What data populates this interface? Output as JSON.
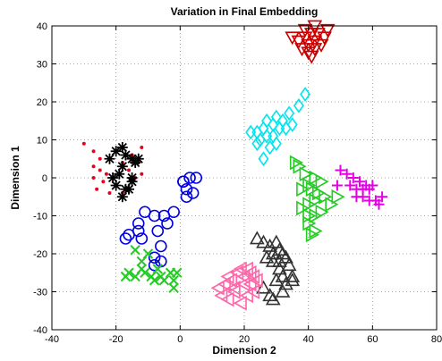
{
  "chart_data": {
    "type": "scatter",
    "title": "Variation in Final Embedding",
    "xlabel": "Dimension 2",
    "ylabel": "Dimension 1",
    "xlim": [
      -40,
      80
    ],
    "ylim": [
      -40,
      40
    ],
    "xticks": [
      -40,
      -20,
      0,
      20,
      40,
      60,
      80
    ],
    "yticks": [
      -40,
      -30,
      -20,
      -10,
      0,
      10,
      20,
      30,
      40
    ],
    "grid": "dotted",
    "series": [
      {
        "marker": "dot",
        "color": "#e8001c",
        "points": [
          [
            -30,
            9
          ],
          [
            -27,
            7
          ],
          [
            -25,
            5
          ],
          [
            -27,
            3
          ],
          [
            -25,
            2
          ],
          [
            -27,
            0
          ],
          [
            -24,
            -1
          ],
          [
            -26,
            -3
          ],
          [
            -22,
            -4
          ],
          [
            -20,
            -2
          ],
          [
            -23,
            1
          ],
          [
            -18,
            4
          ],
          [
            -15,
            6
          ],
          [
            -12,
            8
          ],
          [
            -13,
            4
          ],
          [
            -12,
            1
          ],
          [
            -14,
            0
          ],
          [
            -16,
            2
          ],
          [
            -18,
            -4
          ]
        ]
      },
      {
        "marker": "asterisk",
        "color": "#000000",
        "points": [
          [
            -22,
            5
          ],
          [
            -20,
            7
          ],
          [
            -18,
            8
          ],
          [
            -17,
            6
          ],
          [
            -15,
            5
          ],
          [
            -13,
            5
          ],
          [
            -14,
            4
          ],
          [
            -18,
            3
          ],
          [
            -19,
            1
          ],
          [
            -21,
            0
          ],
          [
            -20,
            -2
          ],
          [
            -17,
            -3
          ],
          [
            -18,
            -5
          ],
          [
            -15,
            -1
          ],
          [
            -15,
            0
          ],
          [
            -16,
            -3
          ]
        ]
      },
      {
        "marker": "circle",
        "color": "#0000e6",
        "points": [
          [
            3,
            0
          ],
          [
            5,
            0
          ],
          [
            1,
            -1
          ],
          [
            2,
            -3
          ],
          [
            2,
            -5
          ],
          [
            4,
            -4
          ],
          [
            1,
            -1
          ],
          [
            -11,
            -9
          ],
          [
            -8,
            -10
          ],
          [
            -5,
            -10
          ],
          [
            -2,
            -9
          ],
          [
            -4,
            -12
          ],
          [
            -13,
            -12
          ],
          [
            -16,
            -15
          ],
          [
            -17,
            -16
          ],
          [
            -12,
            -16
          ],
          [
            -7,
            -14
          ],
          [
            -6,
            -18
          ],
          [
            -8,
            -21
          ],
          [
            -6,
            -22
          ],
          [
            -8,
            -23
          ],
          [
            -13,
            -14
          ]
        ]
      },
      {
        "marker": "x",
        "color": "#22cc22",
        "points": [
          [
            -14,
            -19
          ],
          [
            -16,
            -25
          ],
          [
            -14,
            -26
          ],
          [
            -12,
            -24
          ],
          [
            -12,
            -22
          ],
          [
            -11,
            -25
          ],
          [
            -9,
            -26
          ],
          [
            -7,
            -24
          ],
          [
            -6,
            -26
          ],
          [
            -8,
            -27
          ],
          [
            -5,
            -27
          ],
          [
            -3,
            -25
          ],
          [
            -2,
            -27
          ],
          [
            -1,
            -25
          ],
          [
            -2,
            -29
          ],
          [
            -10,
            -20
          ],
          [
            -17,
            -26
          ]
        ]
      },
      {
        "marker": "diamond",
        "color": "#00e5ee",
        "points": [
          [
            39,
            22
          ],
          [
            37,
            19
          ],
          [
            34,
            17
          ],
          [
            32,
            15
          ],
          [
            31,
            13
          ],
          [
            29,
            14
          ],
          [
            27,
            15
          ],
          [
            26,
            13
          ],
          [
            24,
            12
          ],
          [
            22,
            12
          ],
          [
            25,
            10
          ],
          [
            27,
            11
          ],
          [
            29,
            11
          ],
          [
            30,
            9
          ],
          [
            28,
            8
          ],
          [
            26,
            5
          ],
          [
            24,
            9
          ],
          [
            33,
            13
          ],
          [
            35,
            14
          ],
          [
            30,
            16
          ]
        ]
      },
      {
        "marker": "triangle-down",
        "color": "#c80000",
        "points": [
          [
            35,
            37
          ],
          [
            37,
            36
          ],
          [
            39,
            37
          ],
          [
            41,
            38
          ],
          [
            43,
            38
          ],
          [
            45,
            37
          ],
          [
            42,
            36
          ],
          [
            40,
            35
          ],
          [
            38,
            34
          ],
          [
            40,
            33
          ],
          [
            42,
            34
          ],
          [
            44,
            35
          ],
          [
            46,
            39
          ],
          [
            39,
            39
          ],
          [
            42,
            40
          ],
          [
            41,
            32
          ]
        ]
      },
      {
        "marker": "triangle-right",
        "color": "#22cc22",
        "points": [
          [
            36,
            4
          ],
          [
            37,
            3
          ],
          [
            39,
            1
          ],
          [
            42,
            0
          ],
          [
            44,
            -1
          ],
          [
            40,
            -2
          ],
          [
            38,
            -3
          ],
          [
            41,
            -3
          ],
          [
            43,
            -4
          ],
          [
            45,
            -5
          ],
          [
            42,
            -6
          ],
          [
            40,
            -7
          ],
          [
            38,
            -8
          ],
          [
            40,
            -10
          ],
          [
            42,
            -10
          ],
          [
            44,
            -9
          ],
          [
            40,
            -12
          ],
          [
            42,
            -14
          ],
          [
            41,
            -15
          ],
          [
            47,
            -7
          ],
          [
            49,
            -5
          ]
        ]
      },
      {
        "marker": "plus",
        "color": "#e600e6",
        "points": [
          [
            50,
            2
          ],
          [
            52,
            1
          ],
          [
            54,
            0
          ],
          [
            56,
            -1
          ],
          [
            53,
            -2
          ],
          [
            55,
            -3
          ],
          [
            57,
            -3
          ],
          [
            59,
            -3
          ],
          [
            55,
            -5
          ],
          [
            57,
            -5
          ],
          [
            59,
            -6
          ],
          [
            61,
            -6
          ],
          [
            62,
            -7
          ],
          [
            63,
            -5
          ],
          [
            60,
            -2
          ],
          [
            58,
            -2
          ],
          [
            49,
            -2
          ]
        ]
      },
      {
        "marker": "triangle-up",
        "color": "#333333",
        "points": [
          [
            24,
            -16
          ],
          [
            26,
            -17
          ],
          [
            28,
            -18
          ],
          [
            30,
            -17
          ],
          [
            31,
            -19
          ],
          [
            32,
            -20
          ],
          [
            29,
            -20
          ],
          [
            27,
            -21
          ],
          [
            29,
            -22
          ],
          [
            31,
            -22
          ],
          [
            33,
            -21
          ],
          [
            34,
            -23
          ],
          [
            31,
            -24
          ],
          [
            32,
            -26
          ],
          [
            30,
            -27
          ],
          [
            33,
            -28
          ],
          [
            35,
            -27
          ],
          [
            32,
            -30
          ],
          [
            28,
            -31
          ],
          [
            26,
            -29
          ],
          [
            29,
            -32
          ],
          [
            35,
            -26
          ]
        ]
      },
      {
        "marker": "triangle-left",
        "color": "#ff66aa",
        "points": [
          [
            12,
            -29
          ],
          [
            13,
            -31
          ],
          [
            14,
            -28
          ],
          [
            15,
            -26
          ],
          [
            16,
            -27
          ],
          [
            17,
            -29
          ],
          [
            18,
            -25
          ],
          [
            19,
            -24
          ],
          [
            20,
            -26
          ],
          [
            21,
            -24
          ],
          [
            22,
            -25
          ],
          [
            20,
            -28
          ],
          [
            22,
            -28
          ],
          [
            17,
            -30
          ],
          [
            21,
            -31
          ],
          [
            23,
            -30
          ],
          [
            15,
            -32
          ],
          [
            19,
            -33
          ],
          [
            23,
            -26
          ],
          [
            24,
            -27
          ]
        ]
      }
    ]
  }
}
